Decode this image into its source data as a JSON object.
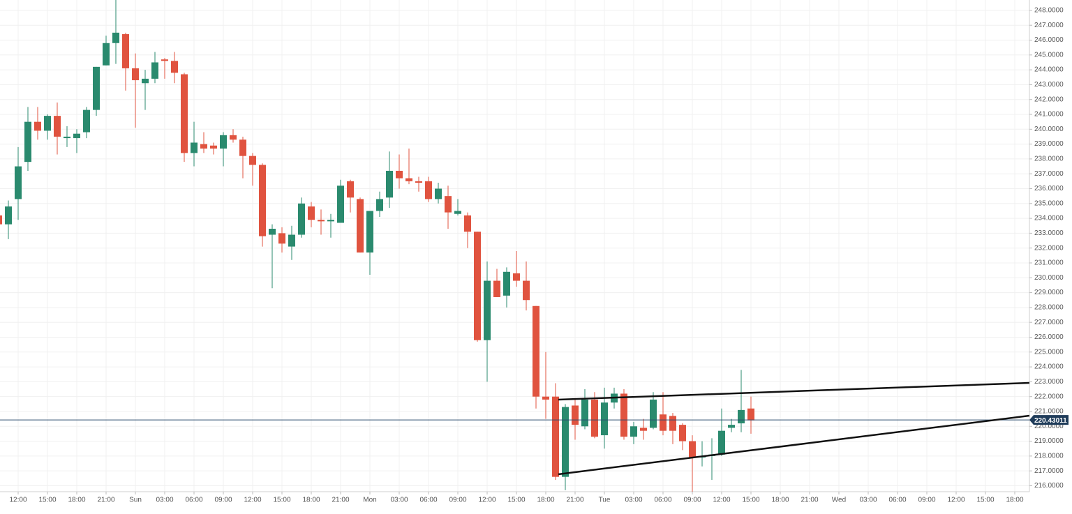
{
  "chart_data": {
    "type": "candlestick",
    "up_color": "#2a8a6e",
    "down_color": "#e0533f",
    "grid": true,
    "categories": [
      null,
      null,
      "12:00",
      null,
      null,
      "15:00",
      null,
      null,
      "18:00",
      null,
      null,
      "21:00",
      null,
      null,
      "Sun",
      null,
      null,
      "03:00",
      null,
      null,
      "06:00",
      null,
      null,
      "09:00",
      null,
      null,
      "12:00",
      null,
      null,
      "15:00",
      null,
      null,
      "18:00",
      null,
      null,
      "21:00",
      null,
      null,
      "Mon",
      null,
      null,
      "03:00",
      null,
      null,
      "06:00",
      null,
      null,
      "09:00",
      null,
      null,
      "12:00",
      null,
      null,
      "15:00",
      null,
      null,
      "18:00",
      null,
      null,
      "21:00",
      null,
      null,
      "Tue",
      null,
      null,
      "03:00",
      null,
      null,
      "06:00",
      null,
      null,
      "09:00",
      null,
      null,
      "12:00",
      null,
      null,
      "15:00",
      null,
      null,
      "18:00",
      null,
      null,
      "21:00",
      null,
      null,
      "Wed",
      null,
      null,
      "03:00",
      null,
      null,
      "06:00",
      null,
      null,
      "09:00",
      null,
      null,
      "12:00",
      null,
      null,
      "15:00",
      null,
      null,
      "18:00"
    ],
    "open": [
      234.2,
      233.6,
      235.3,
      237.8,
      240.5,
      239.9,
      240.9,
      239.4,
      239.4,
      239.8,
      241.3,
      244.3,
      245.8,
      246.4,
      244.1,
      243.1,
      243.4,
      244.7,
      244.6,
      243.7,
      238.4,
      239.0,
      238.9,
      238.7,
      239.6,
      239.3,
      238.2,
      237.6,
      232.9,
      233.0,
      232.1,
      232.9,
      234.8,
      233.9,
      233.8,
      233.7,
      236.5,
      235.3,
      231.7,
      234.5,
      235.4,
      237.2,
      236.7,
      236.5,
      236.5,
      235.3,
      235.5,
      234.3,
      234.2,
      233.1,
      225.8,
      229.8,
      228.8,
      230.3,
      229.8,
      228.1,
      222.0,
      222.0,
      216.6,
      221.4,
      220.0,
      221.8,
      219.4,
      221.6,
      222.2,
      219.3,
      219.9,
      219.9,
      220.8,
      220.7,
      220.1,
      219.0,
      217.9,
      218.0,
      218.1,
      219.9,
      220.2,
      221.2,
      null,
      null,
      null,
      null,
      null,
      null,
      null,
      null,
      null,
      null,
      null,
      null,
      null,
      null,
      null,
      null,
      null,
      null,
      null,
      null,
      null,
      null,
      null,
      null,
      null,
      null,
      null
    ],
    "high": [
      234.3,
      235.2,
      238.8,
      241.5,
      241.5,
      241.0,
      241.8,
      240.2,
      240.0,
      241.5,
      244.2,
      246.3,
      248.7,
      246.5,
      245.1,
      244.0,
      245.2,
      244.8,
      245.2,
      243.8,
      240.5,
      239.8,
      239.1,
      239.8,
      240.0,
      239.5,
      238.4,
      237.7,
      233.6,
      233.4,
      233.5,
      235.4,
      235.1,
      234.6,
      234.3,
      236.6,
      236.6,
      235.4,
      234.5,
      235.8,
      238.5,
      238.3,
      238.7,
      236.8,
      236.8,
      236.4,
      236.2,
      235.3,
      234.4,
      233.1,
      231.1,
      230.6,
      230.7,
      231.8,
      231.1,
      228.1,
      225.0,
      222.9,
      221.5,
      221.9,
      222.5,
      222.3,
      222.6,
      222.6,
      222.5,
      220.3,
      220.5,
      222.3,
      222.3,
      220.9,
      220.2,
      219.4,
      219.0,
      219.2,
      221.2,
      220.5,
      223.8,
      222.0,
      null,
      null,
      null,
      null,
      null,
      null,
      null,
      null,
      null,
      null,
      null,
      null,
      null,
      null,
      null,
      null,
      null,
      null,
      null,
      null,
      null,
      null,
      null,
      null,
      null,
      null,
      null
    ],
    "low": [
      233.5,
      232.6,
      233.9,
      237.2,
      239.3,
      239.3,
      238.3,
      238.8,
      238.4,
      239.4,
      240.9,
      244.3,
      244.4,
      242.6,
      240.1,
      241.3,
      243.1,
      243.4,
      243.1,
      237.8,
      237.5,
      238.4,
      238.3,
      237.5,
      239.1,
      236.7,
      236.2,
      232.1,
      229.3,
      231.7,
      231.2,
      232.7,
      233.4,
      232.9,
      232.7,
      233.7,
      234.4,
      231.7,
      230.2,
      234.1,
      234.7,
      236.0,
      236.3,
      235.8,
      235.1,
      235.0,
      233.3,
      234.2,
      232.0,
      225.7,
      223.0,
      228.7,
      228.0,
      229.4,
      227.8,
      221.2,
      220.5,
      216.4,
      215.7,
      219.1,
      219.8,
      219.2,
      218.5,
      221.2,
      219.1,
      218.8,
      219.1,
      219.8,
      219.4,
      218.8,
      218.4,
      215.6,
      217.3,
      216.4,
      218.0,
      219.6,
      219.6,
      219.5,
      null,
      null,
      null,
      null,
      null,
      null,
      null,
      null,
      null,
      null,
      null,
      null,
      null,
      null,
      null,
      null,
      null,
      null,
      null,
      null,
      null,
      null,
      null,
      null,
      null,
      null,
      null
    ],
    "close": [
      233.6,
      234.8,
      237.5,
      240.5,
      239.9,
      240.9,
      239.5,
      239.5,
      239.7,
      241.3,
      244.2,
      245.8,
      246.5,
      244.1,
      243.3,
      243.4,
      244.5,
      244.6,
      243.8,
      238.4,
      239.1,
      238.7,
      238.7,
      239.6,
      239.3,
      238.2,
      237.6,
      232.8,
      233.3,
      232.3,
      232.9,
      235.0,
      233.9,
      233.8,
      233.9,
      236.2,
      235.4,
      231.7,
      234.5,
      235.3,
      237.2,
      236.7,
      236.5,
      236.4,
      235.3,
      236.0,
      234.4,
      234.5,
      233.1,
      225.8,
      229.8,
      228.7,
      230.4,
      229.8,
      228.5,
      222.0,
      221.8,
      216.6,
      221.3,
      220.1,
      221.8,
      219.3,
      221.6,
      222.2,
      219.3,
      220.0,
      219.7,
      221.8,
      219.7,
      219.7,
      219.0,
      217.9,
      218.0,
      218.1,
      219.7,
      220.1,
      221.1,
      220.4,
      null,
      null,
      null,
      null,
      null,
      null,
      null,
      null,
      null,
      null,
      null,
      null,
      null,
      null,
      null,
      null,
      null,
      null,
      null,
      null,
      null,
      null,
      null,
      null,
      null,
      null,
      null
    ],
    "last_price": 220.43011,
    "ylim": [
      215.6,
      248.7
    ],
    "yticks": [
      {
        "value": 216,
        "label": "216.0000"
      },
      {
        "value": 217,
        "label": "217.0000"
      },
      {
        "value": 218,
        "label": "218.0000"
      },
      {
        "value": 219,
        "label": "219.0000"
      },
      {
        "value": 220,
        "label": "220.0000"
      },
      {
        "value": 221,
        "label": "221.0000"
      },
      {
        "value": 222,
        "label": "222.0000"
      },
      {
        "value": 223,
        "label": "223.0000"
      },
      {
        "value": 224,
        "label": "224.0000"
      },
      {
        "value": 225,
        "label": "225.0000"
      },
      {
        "value": 226,
        "label": "226.0000"
      },
      {
        "value": 227,
        "label": "227.0000"
      },
      {
        "value": 228,
        "label": "228.0000"
      },
      {
        "value": 229,
        "label": "229.0000"
      },
      {
        "value": 230,
        "label": "230.0000"
      },
      {
        "value": 231,
        "label": "231.0000"
      },
      {
        "value": 232,
        "label": "232.0000"
      },
      {
        "value": 233,
        "label": "233.0000"
      },
      {
        "value": 234,
        "label": "234.0000"
      },
      {
        "value": 235,
        "label": "235.0000"
      },
      {
        "value": 236,
        "label": "236.0000"
      },
      {
        "value": 237,
        "label": "237.0000"
      },
      {
        "value": 238,
        "label": "238.0000"
      },
      {
        "value": 239,
        "label": "239.0000"
      },
      {
        "value": 240,
        "label": "240.0000"
      },
      {
        "value": 241,
        "label": "241.0000"
      },
      {
        "value": 242,
        "label": "242.0000"
      },
      {
        "value": 243,
        "label": "243.0000"
      },
      {
        "value": 244,
        "label": "244.0000"
      },
      {
        "value": 245,
        "label": "245.0000"
      },
      {
        "value": 246,
        "label": "246.0000"
      },
      {
        "value": 247,
        "label": "247.0000"
      },
      {
        "value": 248,
        "label": "248.0000"
      }
    ]
  }
}
